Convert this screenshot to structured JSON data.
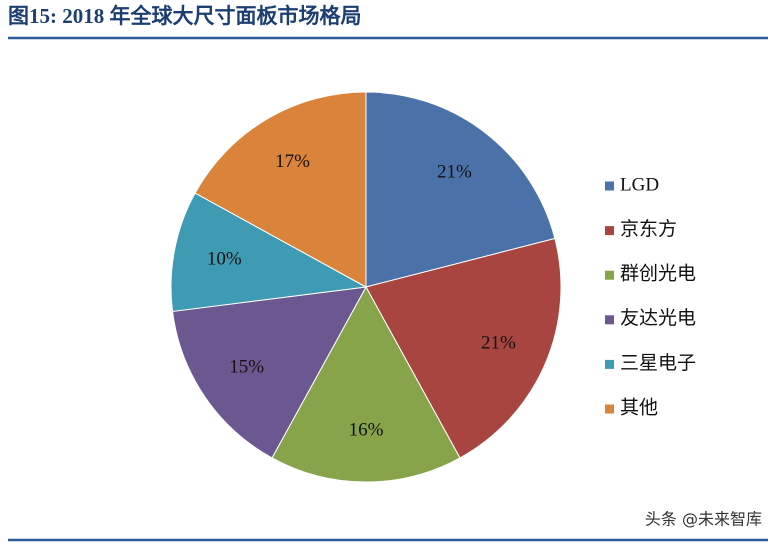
{
  "chart_data": {
    "type": "pie",
    "title": "图15: 2018 年全球大尺寸面板市场格局",
    "categories": [
      "LGD",
      "京东方",
      "群创光电",
      "友达光电",
      "三星电子",
      "其他"
    ],
    "values": [
      21,
      21,
      16,
      15,
      10,
      17
    ],
    "value_labels": [
      "21%",
      "21%",
      "16%",
      "15%",
      "10%",
      "17%"
    ],
    "colors": [
      "#4a72a8",
      "#a84541",
      "#87a44a",
      "#6c5891",
      "#3f9bb4",
      "#d9843a"
    ],
    "legend": "right",
    "watermark": "头条 @未来智库"
  }
}
